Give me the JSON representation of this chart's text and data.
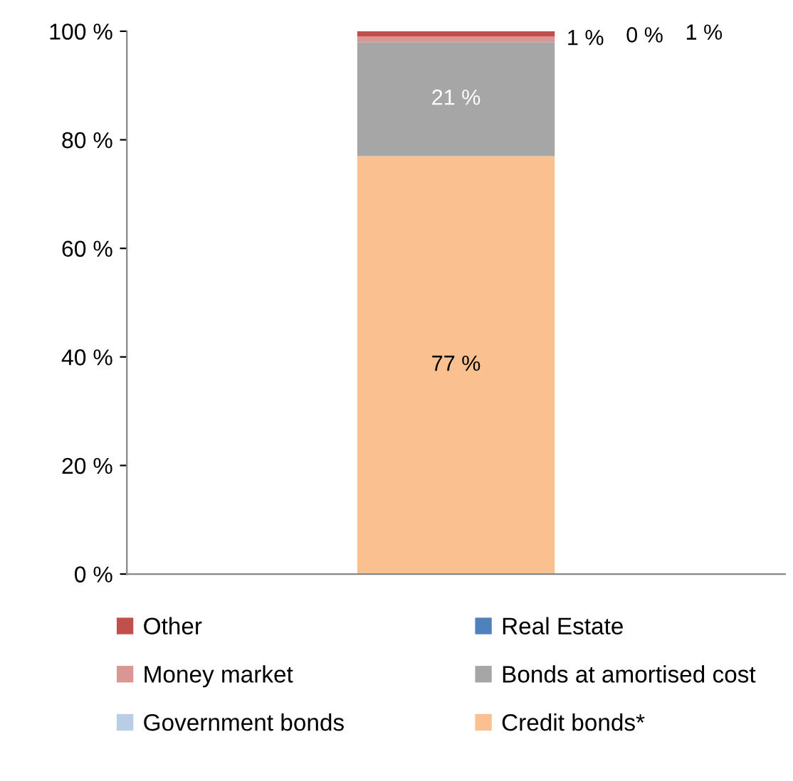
{
  "chart_data": {
    "type": "bar",
    "stacked": true,
    "categories": [
      null
    ],
    "series": [
      {
        "name": "Credit bonds*",
        "color": "#fac090",
        "values": [
          77
        ]
      },
      {
        "name": "Government bonds",
        "color": "#b9cde5",
        "values": [
          0
        ]
      },
      {
        "name": "Bonds at amortised cost",
        "color": "#a6a6a6",
        "values": [
          21
        ]
      },
      {
        "name": "Money market",
        "color": "#d99694",
        "values": [
          1
        ]
      },
      {
        "name": "Real Estate",
        "color": "#4f81bd",
        "values": [
          0
        ]
      },
      {
        "name": "Other",
        "color": "#c0504d",
        "values": [
          1
        ]
      }
    ],
    "value_labels": [
      [
        "77 %"
      ],
      [
        null
      ],
      [
        "21 %"
      ],
      [
        "1 %"
      ],
      [
        "0 %"
      ],
      [
        "1 %"
      ]
    ],
    "ylim": [
      0,
      100
    ],
    "yticks": [
      {
        "value": 0,
        "label": "0 %"
      },
      {
        "value": 20,
        "label": "20 %"
      },
      {
        "value": 40,
        "label": "40 %"
      },
      {
        "value": 60,
        "label": "60 %"
      },
      {
        "value": 80,
        "label": "80 %"
      },
      {
        "value": 100,
        "label": "100 %"
      }
    ],
    "grid": false,
    "legend": "bottom"
  }
}
